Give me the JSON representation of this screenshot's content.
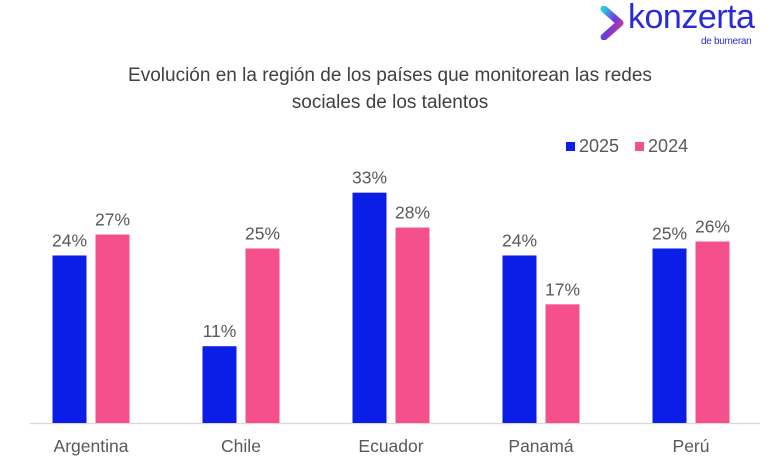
{
  "logo": {
    "text": "konzerta",
    "subtext": "de bumeran"
  },
  "chart_data": {
    "type": "bar",
    "title": "Evolución en la región de los países que monitorean las redes sociales de los talentos",
    "title_lines": [
      "Evolución en la región de los países que monitorean las redes",
      "sociales de los talentos"
    ],
    "categories": [
      "Argentina",
      "Chile",
      "Ecuador",
      "Panamá",
      "Perú"
    ],
    "series": [
      {
        "name": "2025",
        "color": "#0A1EE8",
        "values": [
          24,
          11,
          33,
          24,
          25
        ],
        "labels": [
          "24%",
          "11%",
          "33%",
          "24%",
          "25%"
        ]
      },
      {
        "name": "2024",
        "color": "#F5508C",
        "values": [
          27,
          25,
          28,
          17,
          26
        ],
        "labels": [
          "27%",
          "25%",
          "28%",
          "17%",
          "26%"
        ]
      }
    ],
    "unit": "%",
    "ylim": [
      0,
      35
    ],
    "grid": false,
    "legend": "top-right",
    "axis_color": "#D9D9D9"
  }
}
